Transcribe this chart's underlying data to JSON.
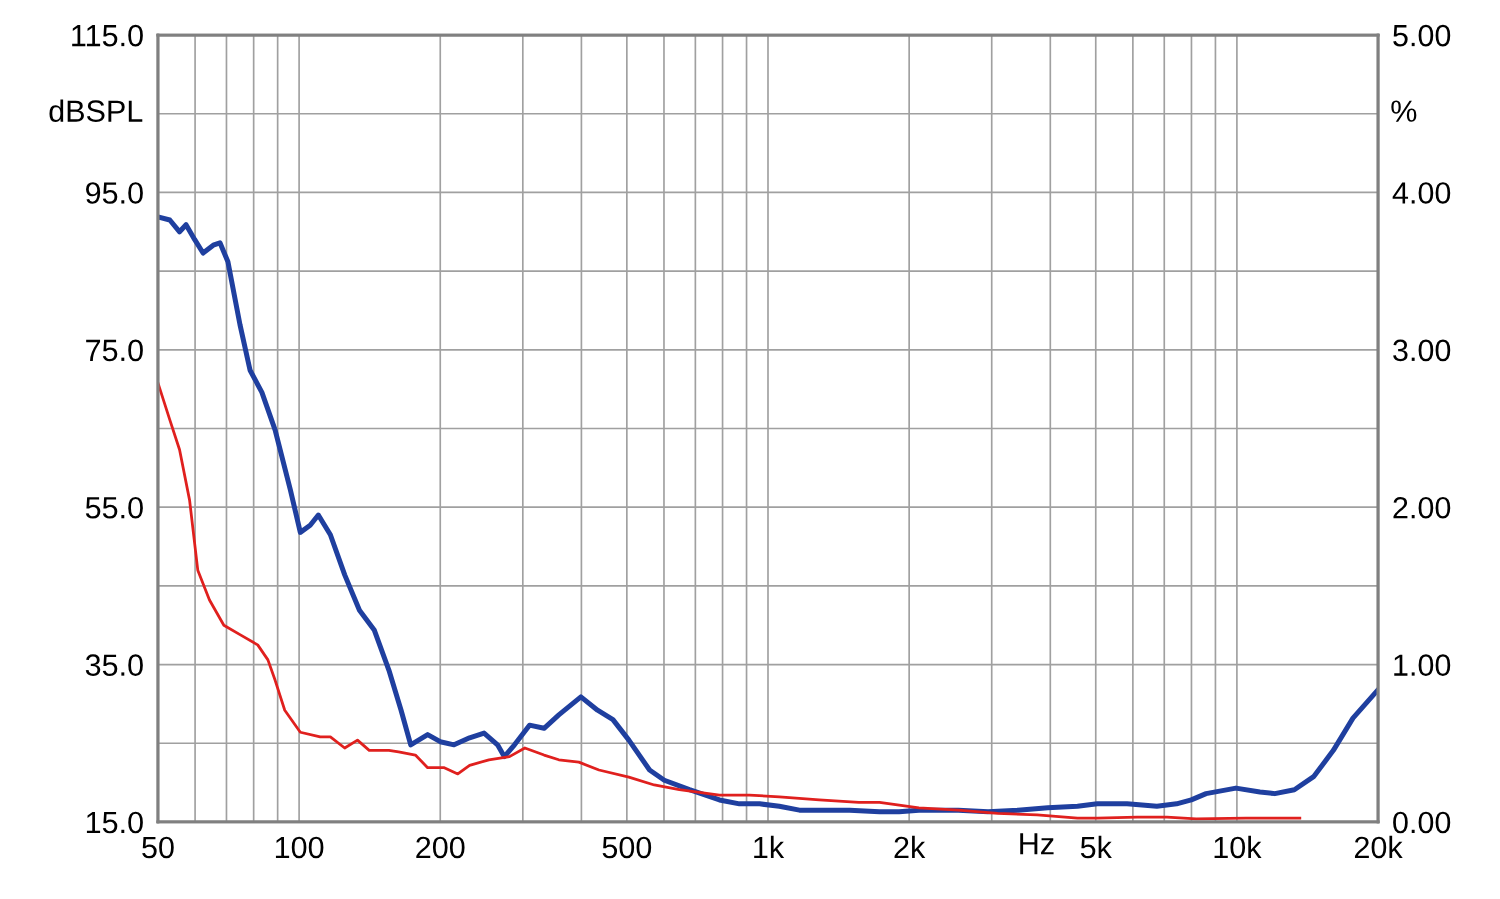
{
  "chart_data": {
    "type": "line",
    "xlabel": "Hz",
    "ylabel": "dBSPL",
    "y2label": "%",
    "log": "x",
    "grid": true,
    "legend": false,
    "line_style": "solid",
    "marker": "none",
    "xlim": [
      50,
      20000
    ],
    "xticks": [
      50,
      {
        "value": 60,
        "label": null
      },
      {
        "value": 70,
        "label": null
      },
      {
        "value": 80,
        "label": null
      },
      {
        "value": 90,
        "label": null
      },
      100,
      200,
      {
        "value": 300,
        "label": null
      },
      {
        "value": 400,
        "label": null
      },
      500,
      {
        "value": 600,
        "label": null
      },
      {
        "value": 700,
        "label": null
      },
      {
        "value": 800,
        "label": null
      },
      {
        "value": 900,
        "label": null
      },
      {
        "value": 1000,
        "label": "1k"
      },
      {
        "value": 2000,
        "label": "2k"
      },
      {
        "value": 3000,
        "label": null
      },
      {
        "value": 4000,
        "label": null
      },
      {
        "value": 5000,
        "label": "5k"
      },
      {
        "value": 6000,
        "label": null
      },
      {
        "value": 7000,
        "label": null
      },
      {
        "value": 8000,
        "label": null
      },
      {
        "value": 9000,
        "label": null
      },
      {
        "value": 10000,
        "label": "10k"
      },
      {
        "value": 20000,
        "label": "20k"
      }
    ],
    "ylim": [
      15,
      115
    ],
    "yticks": [
      {
        "value": 15,
        "label": "15.0"
      },
      {
        "value": 25,
        "label": null
      },
      {
        "value": 35,
        "label": "35.0"
      },
      {
        "value": 45,
        "label": null
      },
      {
        "value": 55,
        "label": "55.0"
      },
      {
        "value": 65,
        "label": null
      },
      {
        "value": 75,
        "label": "75.0"
      },
      {
        "value": 85,
        "label": null
      },
      {
        "value": 95,
        "label": "95.0"
      },
      {
        "value": 105,
        "label": null
      },
      {
        "value": 115,
        "label": "115.0"
      }
    ],
    "y2lim": [
      0,
      5
    ],
    "y2ticks": [
      {
        "value": 0,
        "label": "0.00"
      },
      {
        "value": 1,
        "label": "1.00"
      },
      {
        "value": 2,
        "label": "2.00"
      },
      {
        "value": 3,
        "label": "3.00"
      },
      {
        "value": 4,
        "label": "4.00"
      },
      {
        "value": 5,
        "label": "5.00"
      }
    ],
    "series": [
      {
        "color": "#1f3f9f",
        "x": [
          50,
          53,
          55.6,
          57.4,
          59.9,
          62.4,
          65.6,
          67.8,
          70.5,
          74.8,
          78.6,
          83.3,
          88.9,
          95.8,
          100.6,
          105.6,
          109.9,
          116.6,
          125.1,
          134.5,
          144.6,
          155.4,
          165,
          173,
          177.6,
          188,
          200,
          214,
          231,
          248,
          265,
          274,
          288,
          310,
          333,
          358,
          399,
          433,
          467,
          505,
          559,
          601,
          680,
          788,
          869,
          960,
          1057,
          1167,
          1493,
          1729,
          1904,
          2098,
          2546,
          2947,
          3412,
          3950,
          4572,
          5038,
          5832,
          6751,
          7437,
          7993,
          8595,
          9953,
          11200,
          12050,
          13260,
          14600,
          16060,
          17680,
          20000
        ],
        "values": [
          91.9,
          91.5,
          90.0,
          90.9,
          89.0,
          87.3,
          88.3,
          88.6,
          86.2,
          78.2,
          72.4,
          69.6,
          64.8,
          57.2,
          51.8,
          52.7,
          54.0,
          51.5,
          46.4,
          41.9,
          39.4,
          34.3,
          29.2,
          24.8,
          25.2,
          26.1,
          25.2,
          24.8,
          25.7,
          26.3,
          24.8,
          23.3,
          24.8,
          27.3,
          26.9,
          28.6,
          30.9,
          29.2,
          28.0,
          25.4,
          21.6,
          20.3,
          19.1,
          17.8,
          17.3,
          17.3,
          17.0,
          16.5,
          16.5,
          16.3,
          16.3,
          16.5,
          16.5,
          16.3,
          16.5,
          16.8,
          17.0,
          17.3,
          17.3,
          17.0,
          17.3,
          17.8,
          18.6,
          19.3,
          18.8,
          18.6,
          19.1,
          20.8,
          24.1,
          28.2,
          31.8
        ]
      },
      {
        "color": "#e0201e",
        "x": [
          50,
          53,
          55.6,
          58.4,
          60.8,
          64.4,
          69.1,
          74.8,
          81.6,
          85.8,
          88.9,
          93.2,
          100.6,
          110.9,
          116.6,
          125.1,
          133.2,
          141.1,
          155.4,
          163,
          177,
          188,
          204,
          218,
          231,
          254,
          281,
          303,
          333,
          358,
          395,
          436,
          505,
          572,
          647,
          788,
          913,
          1057,
          1286,
          1562,
          1729,
          2098,
          2546,
          3089,
          3749,
          4572,
          5038,
          6127,
          7090,
          8190,
          10450,
          13620
        ],
        "values": [
          70.8,
          66.1,
          62.3,
          55.9,
          47.0,
          43.2,
          40.0,
          38.8,
          37.5,
          35.6,
          33.0,
          29.2,
          26.4,
          25.8,
          25.8,
          24.4,
          25.4,
          24.1,
          24.1,
          23.9,
          23.5,
          21.9,
          21.9,
          21.1,
          22.2,
          22.9,
          23.3,
          24.4,
          23.5,
          22.9,
          22.6,
          21.6,
          20.7,
          19.7,
          19.1,
          18.4,
          18.4,
          18.2,
          17.8,
          17.5,
          17.5,
          16.8,
          16.5,
          16.1,
          15.9,
          15.5,
          15.5,
          15.6,
          15.6,
          15.4,
          15.5,
          15.5
        ]
      }
    ]
  }
}
